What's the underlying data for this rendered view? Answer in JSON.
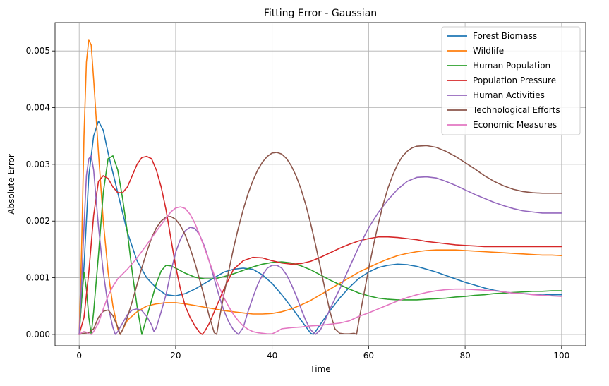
{
  "chart_data": {
    "type": "line",
    "title": "Fitting Error - Gaussian",
    "xlabel": "Time",
    "ylabel": "Absolute Error",
    "xlim": [
      -5,
      105
    ],
    "ylim": [
      -0.0002,
      0.0055
    ],
    "xticks": [
      0,
      20,
      40,
      60,
      80,
      100
    ],
    "yticks": [
      0.0,
      0.001,
      0.002,
      0.003,
      0.004,
      0.005
    ],
    "ytick_labels": [
      "0.000",
      "0.001",
      "0.002",
      "0.003",
      "0.004",
      "0.005"
    ],
    "grid": true,
    "legend_position": "top-right",
    "series": [
      {
        "name": "Forest Biomass",
        "color": "#1f77b4",
        "x": [
          0,
          1,
          2,
          3,
          4,
          5,
          6,
          8,
          10,
          12,
          14,
          16,
          18,
          20,
          22,
          24,
          26,
          28,
          30,
          32,
          34,
          36,
          38,
          40,
          42,
          44,
          46,
          48,
          48.5,
          49,
          50,
          52,
          54,
          56,
          58,
          60,
          62,
          64,
          66,
          68,
          70,
          72,
          74,
          76,
          78,
          80,
          82,
          84,
          86,
          88,
          90,
          92,
          94,
          96,
          98,
          100
        ],
        "y": [
          0,
          0.0012,
          0.0028,
          0.0035,
          0.00376,
          0.0036,
          0.0032,
          0.0025,
          0.0018,
          0.0013,
          0.001,
          0.00082,
          0.0007,
          0.00068,
          0.00072,
          0.0008,
          0.0009,
          0.001,
          0.0011,
          0.00115,
          0.00117,
          0.00115,
          0.00105,
          0.0009,
          0.0007,
          0.00048,
          0.00025,
          2e-05,
          0,
          5e-05,
          0.00018,
          0.00042,
          0.00064,
          0.00083,
          0.00099,
          0.0011,
          0.00118,
          0.00122,
          0.00124,
          0.00123,
          0.0012,
          0.00115,
          0.0011,
          0.00104,
          0.00098,
          0.00092,
          0.00087,
          0.00082,
          0.00078,
          0.00075,
          0.00073,
          0.00072,
          0.00071,
          0.00071,
          0.0007,
          0.0007
        ]
      },
      {
        "name": "Wildlife",
        "color": "#ff7f0e",
        "x": [
          0,
          0.5,
          1,
          1.5,
          2,
          2.5,
          3,
          4,
          5,
          6,
          7,
          8,
          8.5,
          9,
          10,
          12,
          14,
          16,
          18,
          20,
          22,
          24,
          26,
          28,
          30,
          32,
          34,
          36,
          38,
          40,
          42,
          44,
          46,
          48,
          50,
          52,
          54,
          56,
          58,
          60,
          62,
          64,
          66,
          68,
          70,
          72,
          74,
          76,
          78,
          80,
          82,
          84,
          86,
          88,
          90,
          92,
          94,
          96,
          98,
          100
        ],
        "y": [
          0,
          0.0015,
          0.0035,
          0.0048,
          0.0052,
          0.0051,
          0.0045,
          0.0032,
          0.002,
          0.0011,
          0.0005,
          0.0001,
          0,
          8e-05,
          0.00025,
          0.0004,
          0.0005,
          0.00054,
          0.00056,
          0.00056,
          0.00054,
          0.00051,
          0.00048,
          0.00045,
          0.00042,
          0.0004,
          0.00038,
          0.00036,
          0.00036,
          0.00037,
          0.0004,
          0.00045,
          0.00052,
          0.0006,
          0.0007,
          0.0008,
          0.0009,
          0.001,
          0.0011,
          0.00118,
          0.00126,
          0.00133,
          0.00139,
          0.00143,
          0.00146,
          0.00148,
          0.00149,
          0.00149,
          0.00149,
          0.00148,
          0.00147,
          0.00146,
          0.00145,
          0.00144,
          0.00143,
          0.00142,
          0.00141,
          0.0014,
          0.0014,
          0.00139
        ]
      },
      {
        "name": "Human Population",
        "color": "#2ca02c",
        "x": [
          0,
          0.5,
          1,
          1.5,
          2,
          2.5,
          3,
          4,
          5,
          6,
          7,
          8,
          9,
          10,
          11,
          12,
          13,
          14,
          15,
          16,
          17,
          18,
          19,
          20,
          22,
          24,
          26,
          28,
          30,
          32,
          34,
          36,
          38,
          40,
          42,
          44,
          46,
          48,
          50,
          52,
          54,
          56,
          58,
          60,
          62,
          64,
          66,
          68,
          70,
          72,
          74,
          76,
          78,
          80,
          82,
          84,
          86,
          88,
          90,
          92,
          94,
          96,
          98,
          100
        ],
        "y": [
          0,
          0.0006,
          0.0011,
          0.0008,
          0.0003,
          0,
          0.0004,
          0.0014,
          0.0025,
          0.0031,
          0.00315,
          0.0029,
          0.0024,
          0.0018,
          0.0011,
          0.0005,
          0,
          0.0003,
          0.0006,
          0.0009,
          0.00112,
          0.00122,
          0.00121,
          0.00117,
          0.00108,
          0.00101,
          0.00098,
          0.00098,
          0.00102,
          0.00107,
          0.00113,
          0.00119,
          0.00124,
          0.00127,
          0.00128,
          0.00126,
          0.00121,
          0.00114,
          0.00105,
          0.00096,
          0.00088,
          0.0008,
          0.00073,
          0.00068,
          0.00064,
          0.00062,
          0.00061,
          0.00061,
          0.00061,
          0.00062,
          0.00063,
          0.00064,
          0.00066,
          0.00067,
          0.00069,
          0.0007,
          0.00072,
          0.00073,
          0.00074,
          0.00075,
          0.00076,
          0.00076,
          0.00077,
          0.00077
        ]
      },
      {
        "name": "Population Pressure",
        "color": "#d62728",
        "x": [
          0,
          1,
          2,
          3,
          4,
          5,
          6,
          7,
          8,
          9,
          10,
          11,
          12,
          13,
          14,
          15,
          16,
          17,
          18,
          19,
          20,
          21,
          22,
          23,
          24,
          25,
          25.5,
          26,
          27,
          28,
          30,
          32,
          34,
          36,
          38,
          40,
          42,
          44,
          46,
          48,
          50,
          52,
          54,
          56,
          58,
          60,
          62,
          64,
          66,
          68,
          70,
          72,
          74,
          76,
          78,
          80,
          82,
          84,
          86,
          88,
          90,
          92,
          94,
          96,
          98,
          100
        ],
        "y": [
          0,
          0.0003,
          0.0011,
          0.0021,
          0.0027,
          0.0028,
          0.00275,
          0.0026,
          0.0025,
          0.0025,
          0.0026,
          0.0028,
          0.003,
          0.00312,
          0.00314,
          0.0031,
          0.0029,
          0.0026,
          0.0022,
          0.0017,
          0.0012,
          0.0008,
          0.0005,
          0.0003,
          0.00015,
          3e-05,
          0,
          5e-05,
          0.0002,
          0.0004,
          0.0008,
          0.00115,
          0.0013,
          0.00136,
          0.00135,
          0.0013,
          0.00126,
          0.00124,
          0.00125,
          0.00129,
          0.00136,
          0.00144,
          0.00152,
          0.00159,
          0.00165,
          0.00169,
          0.00172,
          0.00172,
          0.00171,
          0.00169,
          0.00167,
          0.00164,
          0.00162,
          0.0016,
          0.00158,
          0.00157,
          0.00156,
          0.00155,
          0.00155,
          0.00155,
          0.00155,
          0.00155,
          0.00155,
          0.00155,
          0.00155,
          0.00155
        ]
      },
      {
        "name": "Human Activities",
        "color": "#9467bd",
        "x": [
          0,
          0.5,
          1,
          1.5,
          2,
          2.5,
          3,
          3.5,
          4,
          5,
          6,
          7,
          7.5,
          8,
          9,
          10,
          11,
          12,
          13,
          14,
          15,
          15.5,
          16,
          17,
          18,
          19,
          20,
          21,
          22,
          23,
          24,
          25,
          26,
          27,
          28,
          29,
          30,
          31,
          32,
          33,
          34,
          35,
          36,
          37,
          38,
          39,
          40,
          41,
          42,
          43,
          44,
          45,
          46,
          47,
          48,
          49,
          50,
          51,
          52,
          54,
          56,
          58,
          60,
          62,
          64,
          66,
          68,
          70,
          72,
          74,
          76,
          78,
          80,
          82,
          84,
          86,
          88,
          90,
          92,
          94,
          96,
          98,
          100
        ],
        "y": [
          0,
          0.0009,
          0.0019,
          0.0028,
          0.0031,
          0.00315,
          0.0029,
          0.0024,
          0.0019,
          0.0011,
          0.0005,
          0.00012,
          0,
          5e-05,
          0.0002,
          0.00035,
          0.00043,
          0.00045,
          0.00042,
          0.00032,
          0.00017,
          5e-05,
          0.00012,
          0.0004,
          0.0007,
          0.0011,
          0.00145,
          0.00168,
          0.00183,
          0.00189,
          0.00187,
          0.00175,
          0.00155,
          0.00128,
          0.00098,
          0.00068,
          0.00042,
          0.00022,
          8e-05,
          0,
          0.00012,
          0.0004,
          0.00065,
          0.00088,
          0.00105,
          0.00117,
          0.00122,
          0.00122,
          0.00117,
          0.00105,
          0.00088,
          0.00068,
          0.00045,
          0.00024,
          8e-05,
          0,
          8e-05,
          0.00025,
          0.00045,
          0.0008,
          0.00118,
          0.00155,
          0.00188,
          0.00215,
          0.00237,
          0.00256,
          0.0027,
          0.00277,
          0.00278,
          0.00276,
          0.0027,
          0.00263,
          0.00255,
          0.00247,
          0.0024,
          0.00233,
          0.00227,
          0.00222,
          0.00218,
          0.00216,
          0.00214,
          0.00214,
          0.00214
        ]
      },
      {
        "name": "Technological Efforts",
        "color": "#8c564b",
        "x": [
          0,
          1,
          2,
          3,
          4,
          5,
          6,
          7,
          8,
          8.5,
          9,
          10,
          11,
          12,
          13,
          14,
          15,
          16,
          17,
          18,
          19,
          20,
          21,
          22,
          23,
          24,
          25,
          26,
          27,
          28,
          28.5,
          29,
          30,
          31,
          32,
          33,
          34,
          35,
          36,
          37,
          38,
          39,
          40,
          41,
          42,
          43,
          44,
          45,
          46,
          47,
          48,
          49,
          50,
          51,
          52,
          53,
          54,
          55,
          56,
          57,
          57.5,
          58,
          59,
          60,
          61,
          62,
          63,
          64,
          65,
          66,
          67,
          68,
          69,
          70,
          72,
          74,
          76,
          78,
          80,
          82,
          84,
          86,
          88,
          90,
          92,
          94,
          96,
          98,
          100
        ],
        "y": [
          0,
          2e-05,
          3e-05,
          0.0001,
          0.0003,
          0.00041,
          0.00043,
          0.00033,
          0.00013,
          0,
          8e-05,
          0.0003,
          0.00058,
          0.00088,
          0.00118,
          0.00145,
          0.0017,
          0.00188,
          0.002,
          0.00207,
          0.00208,
          0.00203,
          0.00192,
          0.00175,
          0.00152,
          0.00126,
          0.00096,
          0.00064,
          0.00031,
          3e-05,
          0,
          0.00025,
          0.0007,
          0.00112,
          0.00152,
          0.00188,
          0.0022,
          0.00248,
          0.00271,
          0.0029,
          0.00304,
          0.00314,
          0.0032,
          0.00321,
          0.00318,
          0.0031,
          0.00297,
          0.00279,
          0.00256,
          0.00228,
          0.00195,
          0.00158,
          0.00118,
          0.00078,
          0.0004,
          0.0001,
          2e-05,
          1e-05,
          1e-05,
          2e-05,
          0,
          0.00025,
          0.0007,
          0.00115,
          0.00157,
          0.00195,
          0.00229,
          0.00258,
          0.00281,
          0.003,
          0.00314,
          0.00323,
          0.00329,
          0.00332,
          0.00333,
          0.0033,
          0.00323,
          0.00314,
          0.00303,
          0.00292,
          0.0028,
          0.0027,
          0.00262,
          0.00256,
          0.00252,
          0.0025,
          0.00249,
          0.00249,
          0.00249
        ]
      },
      {
        "name": "Economic Measures",
        "color": "#e377c2",
        "x": [
          0,
          0.5,
          1,
          1.5,
          2,
          2.5,
          3,
          4,
          5,
          6,
          7,
          8,
          10,
          12,
          14,
          16,
          18,
          19,
          20,
          21,
          22,
          23,
          24,
          25,
          26,
          27,
          28,
          29,
          30,
          31,
          32,
          33,
          34,
          35,
          36,
          37,
          38,
          39,
          40,
          41,
          42,
          44,
          46,
          48,
          50,
          52,
          54,
          56,
          58,
          60,
          62,
          64,
          66,
          68,
          70,
          72,
          74,
          76,
          78,
          80,
          82,
          84,
          86,
          88,
          90,
          92,
          94,
          96,
          98,
          100
        ],
        "y": [
          0,
          3e-05,
          5e-05,
          4e-05,
          1e-05,
          0,
          5e-05,
          0.0002,
          0.00045,
          0.00068,
          0.00085,
          0.00098,
          0.00115,
          0.00135,
          0.00158,
          0.00182,
          0.00205,
          0.00216,
          0.00223,
          0.00225,
          0.00222,
          0.00212,
          0.00196,
          0.00175,
          0.00152,
          0.00128,
          0.00105,
          0.00084,
          0.00065,
          0.00049,
          0.00035,
          0.00024,
          0.00015,
          9e-05,
          5e-05,
          3e-05,
          2e-05,
          1e-05,
          1e-05,
          5e-05,
          0.0001,
          0.00012,
          0.00013,
          0.00015,
          0.00016,
          0.00018,
          0.0002,
          0.00024,
          0.00032,
          0.00038,
          0.00045,
          0.00052,
          0.00059,
          0.00065,
          0.0007,
          0.00074,
          0.00077,
          0.00079,
          0.0008,
          0.0008,
          0.00079,
          0.00078,
          0.00077,
          0.00075,
          0.00073,
          0.00072,
          0.0007,
          0.00069,
          0.00068,
          0.00067
        ]
      }
    ]
  }
}
